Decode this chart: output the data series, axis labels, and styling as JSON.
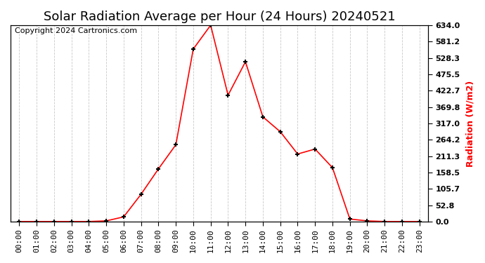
{
  "title": "Solar Radiation Average per Hour (24 Hours) 20240521",
  "copyright_text": "Copyright 2024 Cartronics.com",
  "ylabel": "Radiation (W/m2)",
  "line_color": "#ff0000",
  "marker_color": "#000000",
  "background_color": "#ffffff",
  "grid_color": "#bbbbbb",
  "hours": [
    0,
    1,
    2,
    3,
    4,
    5,
    6,
    7,
    8,
    9,
    10,
    11,
    12,
    13,
    14,
    15,
    16,
    17,
    18,
    19,
    20,
    21,
    22,
    23
  ],
  "values": [
    0.0,
    0.0,
    0.0,
    0.0,
    0.0,
    2.0,
    15.0,
    88.0,
    170.0,
    248.0,
    557.0,
    634.0,
    408.0,
    516.0,
    338.0,
    290.0,
    218.0,
    234.0,
    174.0,
    8.0,
    2.0,
    0.0,
    0.0,
    0.0
  ],
  "yticks": [
    0.0,
    52.8,
    105.7,
    158.5,
    211.3,
    264.2,
    317.0,
    369.8,
    422.7,
    475.5,
    528.3,
    581.2,
    634.0
  ],
  "ymax": 634.0,
  "ymin": 0.0,
  "title_fontsize": 13,
  "tick_fontsize": 8,
  "copyright_fontsize": 8,
  "ylabel_fontsize": 9
}
